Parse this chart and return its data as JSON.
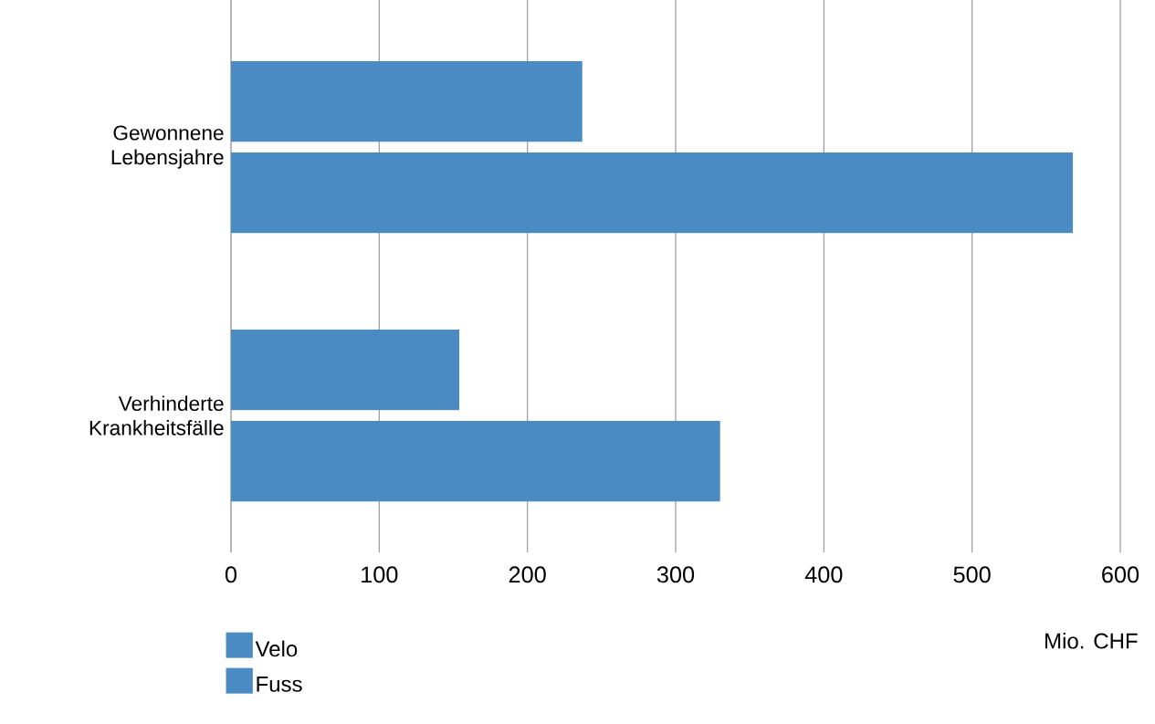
{
  "chart_data": {
    "type": "bar",
    "orientation": "horizontal",
    "categories": [
      "Gewonnene Lebensjahre",
      "Verhinderte Krankheitsfälle"
    ],
    "series": [
      {
        "name": "Velo",
        "color": "#4a8bc4",
        "values": [
          237,
          154
        ]
      },
      {
        "name": "Fuss",
        "color": "#4a8bc4",
        "values": [
          568,
          330
        ]
      }
    ],
    "xlabel": "Mio. CHF",
    "xlim": [
      0,
      600
    ],
    "xticks": [
      0,
      100,
      200,
      300,
      400,
      500,
      600
    ],
    "grid": "x",
    "legend": "bottom left"
  }
}
